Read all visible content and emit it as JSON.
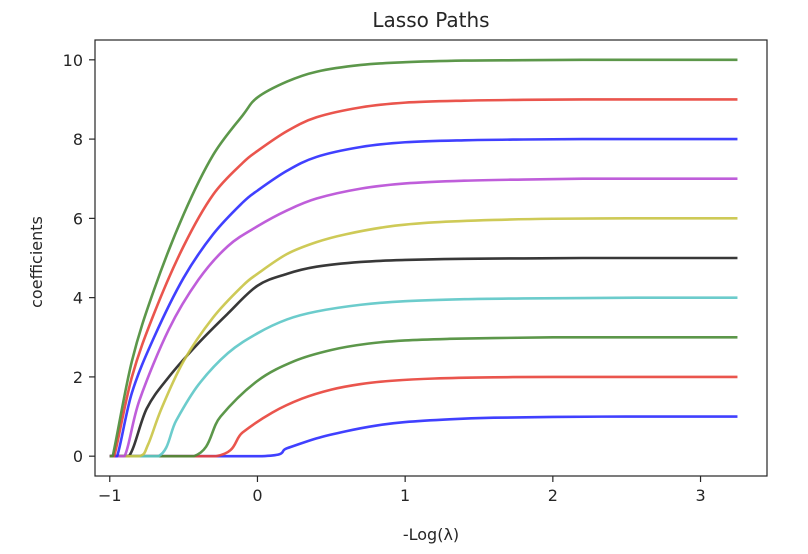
{
  "chart_data": {
    "type": "line",
    "title": "Lasso Paths",
    "xlabel": "-Log(λ)",
    "ylabel": "coefficients",
    "xlim": [
      -1.1,
      3.45
    ],
    "ylim": [
      -0.5,
      10.5
    ],
    "x_ticks": [
      -1,
      0,
      1,
      2,
      3
    ],
    "y_ticks": [
      0,
      2,
      4,
      6,
      8,
      10
    ],
    "grid": false,
    "legend": "none",
    "series": [
      {
        "color": "#2b2bff",
        "x": [
          -1.0,
          0.03,
          0.2,
          0.4,
          0.6,
          0.8,
          1.0,
          1.3,
          1.6,
          2.0,
          2.5,
          3.0,
          3.25
        ],
        "values": [
          0,
          0,
          0.2,
          0.45,
          0.63,
          0.77,
          0.86,
          0.93,
          0.97,
          0.99,
          1.0,
          1.0,
          1.0
        ]
      },
      {
        "color": "#e8433a",
        "x": [
          -1.0,
          -0.28,
          -0.1,
          0.1,
          0.3,
          0.5,
          0.7,
          0.9,
          1.2,
          1.6,
          2.0,
          2.5,
          3.0,
          3.25
        ],
        "values": [
          0,
          0,
          0.6,
          1.1,
          1.45,
          1.68,
          1.82,
          1.9,
          1.96,
          1.99,
          2.0,
          2.0,
          2.0,
          2.0
        ]
      },
      {
        "color": "#4a8c36",
        "x": [
          -1.0,
          -0.43,
          -0.25,
          0.0,
          0.25,
          0.5,
          0.75,
          1.0,
          1.3,
          1.6,
          2.0,
          2.5,
          3.0,
          3.25
        ],
        "values": [
          0,
          0,
          1.0,
          1.9,
          2.4,
          2.68,
          2.84,
          2.92,
          2.96,
          2.98,
          3.0,
          3.0,
          3.0,
          3.0
        ]
      },
      {
        "color": "#5cc6c6",
        "x": [
          -1.0,
          -0.67,
          -0.55,
          -0.4,
          -0.2,
          0.0,
          0.2,
          0.4,
          0.7,
          1.0,
          1.4,
          1.8,
          2.2,
          2.6,
          3.0,
          3.25
        ],
        "values": [
          0,
          0,
          0.9,
          1.8,
          2.6,
          3.1,
          3.45,
          3.65,
          3.82,
          3.91,
          3.96,
          3.98,
          3.99,
          4.0,
          4.0,
          4.0
        ]
      },
      {
        "color": "#222222",
        "x": [
          -1.0,
          -0.87,
          -0.75,
          -0.6,
          -0.4,
          -0.2,
          0.0,
          0.2,
          0.4,
          0.7,
          1.0,
          1.4,
          1.8,
          2.2,
          2.6,
          3.0,
          3.25
        ],
        "values": [
          0,
          0,
          1.2,
          2.0,
          2.85,
          3.6,
          4.3,
          4.6,
          4.78,
          4.9,
          4.95,
          4.98,
          4.99,
          5.0,
          5.0,
          5.0,
          5.0
        ]
      },
      {
        "color": "#c9c445",
        "x": [
          -1.0,
          -0.8,
          -0.74,
          -0.65,
          -0.5,
          -0.3,
          -0.1,
          0.0,
          0.2,
          0.4,
          0.6,
          0.9,
          1.2,
          1.6,
          2.0,
          2.5,
          3.0,
          3.25
        ],
        "values": [
          0,
          0,
          0.3,
          1.2,
          2.4,
          3.5,
          4.3,
          4.6,
          5.1,
          5.4,
          5.6,
          5.8,
          5.9,
          5.96,
          5.99,
          6.0,
          6.0,
          6.0
        ]
      },
      {
        "color": "#b84dd6",
        "x": [
          -1.0,
          -0.9,
          -0.8,
          -0.6,
          -0.4,
          -0.2,
          0.0,
          0.2,
          0.4,
          0.7,
          1.0,
          1.4,
          1.8,
          2.2,
          2.6,
          3.0,
          3.25
        ],
        "values": [
          0,
          0,
          1.4,
          3.2,
          4.45,
          5.3,
          5.8,
          6.2,
          6.5,
          6.75,
          6.88,
          6.95,
          6.98,
          7.0,
          7.0,
          7.0,
          7.0
        ]
      },
      {
        "color": "#2b2bff",
        "x": [
          -1.0,
          -0.95,
          -0.85,
          -0.7,
          -0.5,
          -0.3,
          -0.1,
          0.0,
          0.2,
          0.4,
          0.7,
          1.0,
          1.4,
          1.8,
          2.2,
          2.6,
          3.0,
          3.25
        ],
        "values": [
          0,
          0,
          1.6,
          3.0,
          4.5,
          5.6,
          6.4,
          6.7,
          7.2,
          7.55,
          7.8,
          7.92,
          7.97,
          7.99,
          8.0,
          8.0,
          8.0,
          8.0
        ]
      },
      {
        "color": "#e8433a",
        "x": [
          -1.0,
          -0.97,
          -0.85,
          -0.7,
          -0.5,
          -0.3,
          -0.1,
          0.0,
          0.2,
          0.4,
          0.7,
          1.0,
          1.4,
          1.8,
          2.2,
          2.6,
          3.0,
          3.25
        ],
        "values": [
          0,
          0,
          2.0,
          3.6,
          5.3,
          6.6,
          7.4,
          7.7,
          8.2,
          8.55,
          8.8,
          8.92,
          8.97,
          8.99,
          9.0,
          9.0,
          9.0,
          9.0
        ]
      },
      {
        "color": "#4a8c36",
        "x": [
          -1.0,
          -0.98,
          -0.85,
          -0.7,
          -0.5,
          -0.3,
          -0.1,
          0.0,
          0.2,
          0.4,
          0.7,
          1.0,
          1.4,
          1.8,
          2.2,
          2.6,
          3.0,
          3.25
        ],
        "values": [
          0,
          0,
          2.4,
          4.2,
          6.1,
          7.6,
          8.6,
          9.05,
          9.45,
          9.7,
          9.87,
          9.94,
          9.98,
          9.99,
          10.0,
          10.0,
          10.0,
          10.0
        ]
      }
    ]
  }
}
